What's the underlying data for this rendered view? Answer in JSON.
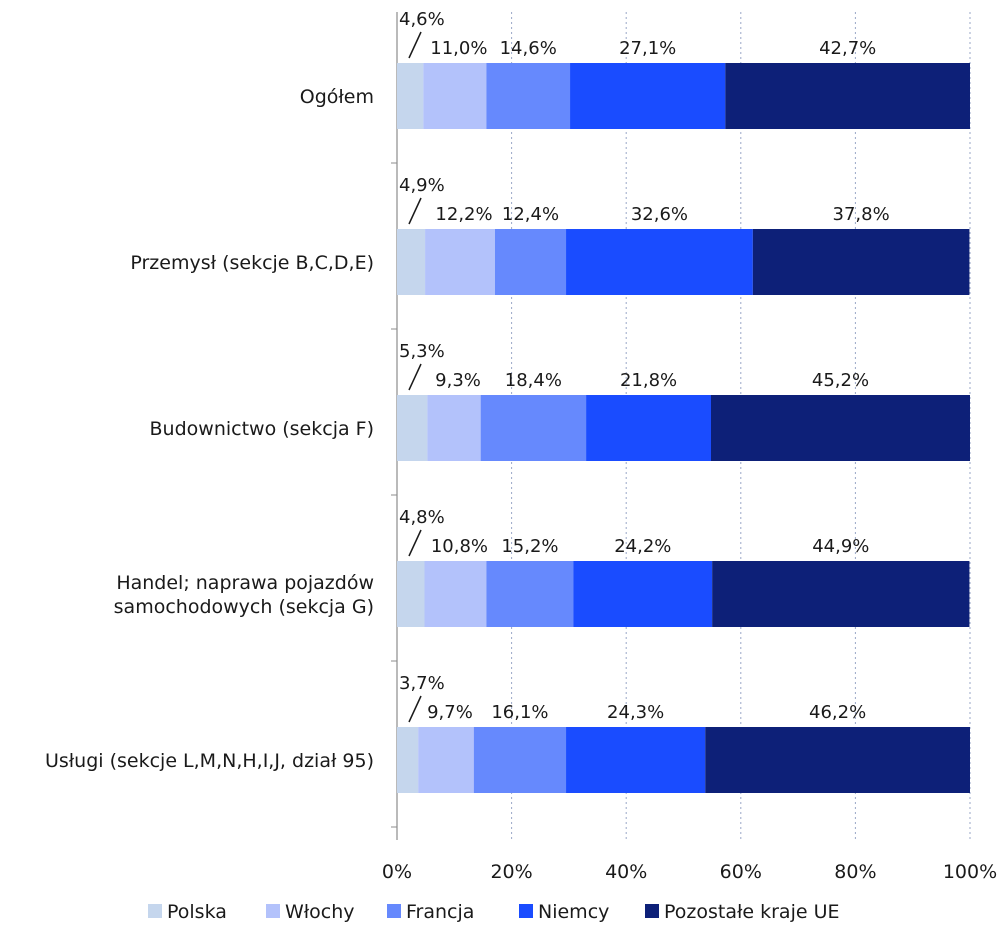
{
  "chart_data": {
    "type": "bar",
    "orientation": "horizontal",
    "stacked": true,
    "categories": [
      [
        "Ogółem"
      ],
      [
        "Przemysł (sekcje B,C,D,E)"
      ],
      [
        "Budownictwo (sekcja F)"
      ],
      [
        "Handel; naprawa pojazdów",
        "samochodowych (sekcja G)"
      ],
      [
        "Usługi (sekcje L,M,N,H,I,J, dział 95)"
      ]
    ],
    "series": [
      {
        "name": "Polska",
        "color": "#c5d6ed",
        "values": [
          4.6,
          4.9,
          5.3,
          4.8,
          3.7
        ],
        "labels": [
          "4,6%",
          "4,9%",
          "5,3%",
          "4,8%",
          "3,7%"
        ]
      },
      {
        "name": "Włochy",
        "color": "#b3c2fb",
        "values": [
          11.0,
          12.2,
          9.3,
          10.8,
          9.7
        ],
        "labels": [
          "11,0%",
          "12,2%",
          "9,3%",
          "10,8%",
          "9,7%"
        ]
      },
      {
        "name": "Francja",
        "color": "#6689fd",
        "values": [
          14.6,
          12.4,
          18.4,
          15.2,
          16.1
        ],
        "labels": [
          "14,6%",
          "12,4%",
          "18,4%",
          "15,2%",
          "16,1%"
        ]
      },
      {
        "name": "Niemcy",
        "color": "#1a4cff",
        "values": [
          27.1,
          32.6,
          21.8,
          24.2,
          24.3
        ],
        "labels": [
          "27,1%",
          "32,6%",
          "21,8%",
          "24,2%",
          "24,3%"
        ]
      },
      {
        "name": "Pozostałe kraje UE",
        "color": "#0d2078",
        "values": [
          42.7,
          37.8,
          45.2,
          44.9,
          46.2
        ],
        "labels": [
          "42,7%",
          "37,8%",
          "45,2%",
          "44,9%",
          "46,2%"
        ]
      }
    ],
    "xlim": [
      0,
      100
    ],
    "xticks": [
      "0%",
      "20%",
      "40%",
      "60%",
      "80%",
      "100%"
    ],
    "grid": "vertical dotted",
    "legend": "bottom"
  }
}
